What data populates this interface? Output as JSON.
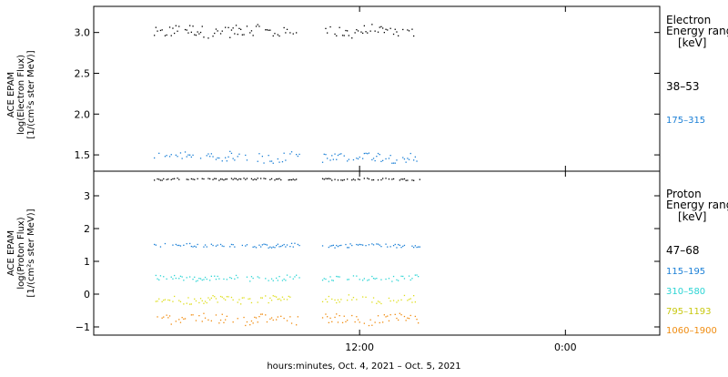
{
  "chart_data": [
    {
      "type": "scatter",
      "panel": "electron",
      "ylabel_lines": [
        "ACE EPAM",
        "log(Electron Flux)",
        "[1/(cm²s ster MeV)]"
      ],
      "ylim": [
        1.3,
        3.32
      ],
      "yticks": [
        1.5,
        2.0,
        2.5,
        3.0
      ],
      "ytick_labels": [
        "1.5",
        "2.0",
        "2.5",
        "3.0"
      ],
      "grid": false,
      "legend_title_lines": [
        "Electron",
        "Energy range",
        "[keV]"
      ],
      "series": [
        {
          "name": "38–53",
          "color": "#000000",
          "center": 3.02,
          "spread": 0.07
        },
        {
          "name": "175–315",
          "color": "#1a7fd6",
          "center": 1.48,
          "spread": 0.06
        }
      ]
    },
    {
      "type": "scatter",
      "panel": "proton",
      "ylabel_lines": [
        "ACE EPAM",
        "log(Proton Flux)",
        "[1/(cm²s ster MeV)]"
      ],
      "ylim": [
        -1.25,
        3.75
      ],
      "yticks": [
        -1,
        0,
        1,
        2,
        3
      ],
      "ytick_labels": [
        "−1",
        "0",
        "1",
        "2",
        "3"
      ],
      "grid": false,
      "legend_title_lines": [
        "Proton",
        "Energy range",
        "[keV]"
      ],
      "series": [
        {
          "name": "47–68",
          "color": "#000000",
          "center": 3.52,
          "spread": 0.03
        },
        {
          "name": "115–195",
          "color": "#1a7fd6",
          "center": 1.5,
          "spread": 0.06
        },
        {
          "name": "310–580",
          "color": "#2bd4d4",
          "center": 0.5,
          "spread": 0.08
        },
        {
          "name": "795–1193",
          "color": "#dede1c",
          "center": -0.15,
          "spread": 0.12
        },
        {
          "name": "1060–1900",
          "color": "#f08c10",
          "center": -0.75,
          "spread": 0.15
        }
      ]
    }
  ],
  "x_axis": {
    "range_hours": [
      -15.5,
      17.5
    ],
    "data_start_hours": -12,
    "gap_hours": [
      -3.5,
      -2.2
    ],
    "data_end_hours": 3.5,
    "ticks": [
      {
        "hours": 0,
        "label": "12:00"
      },
      {
        "hours": 12,
        "label": "0:00"
      }
    ],
    "label": "hours:minutes, Oct.  4, 2021 – Oct.  5, 2021"
  }
}
